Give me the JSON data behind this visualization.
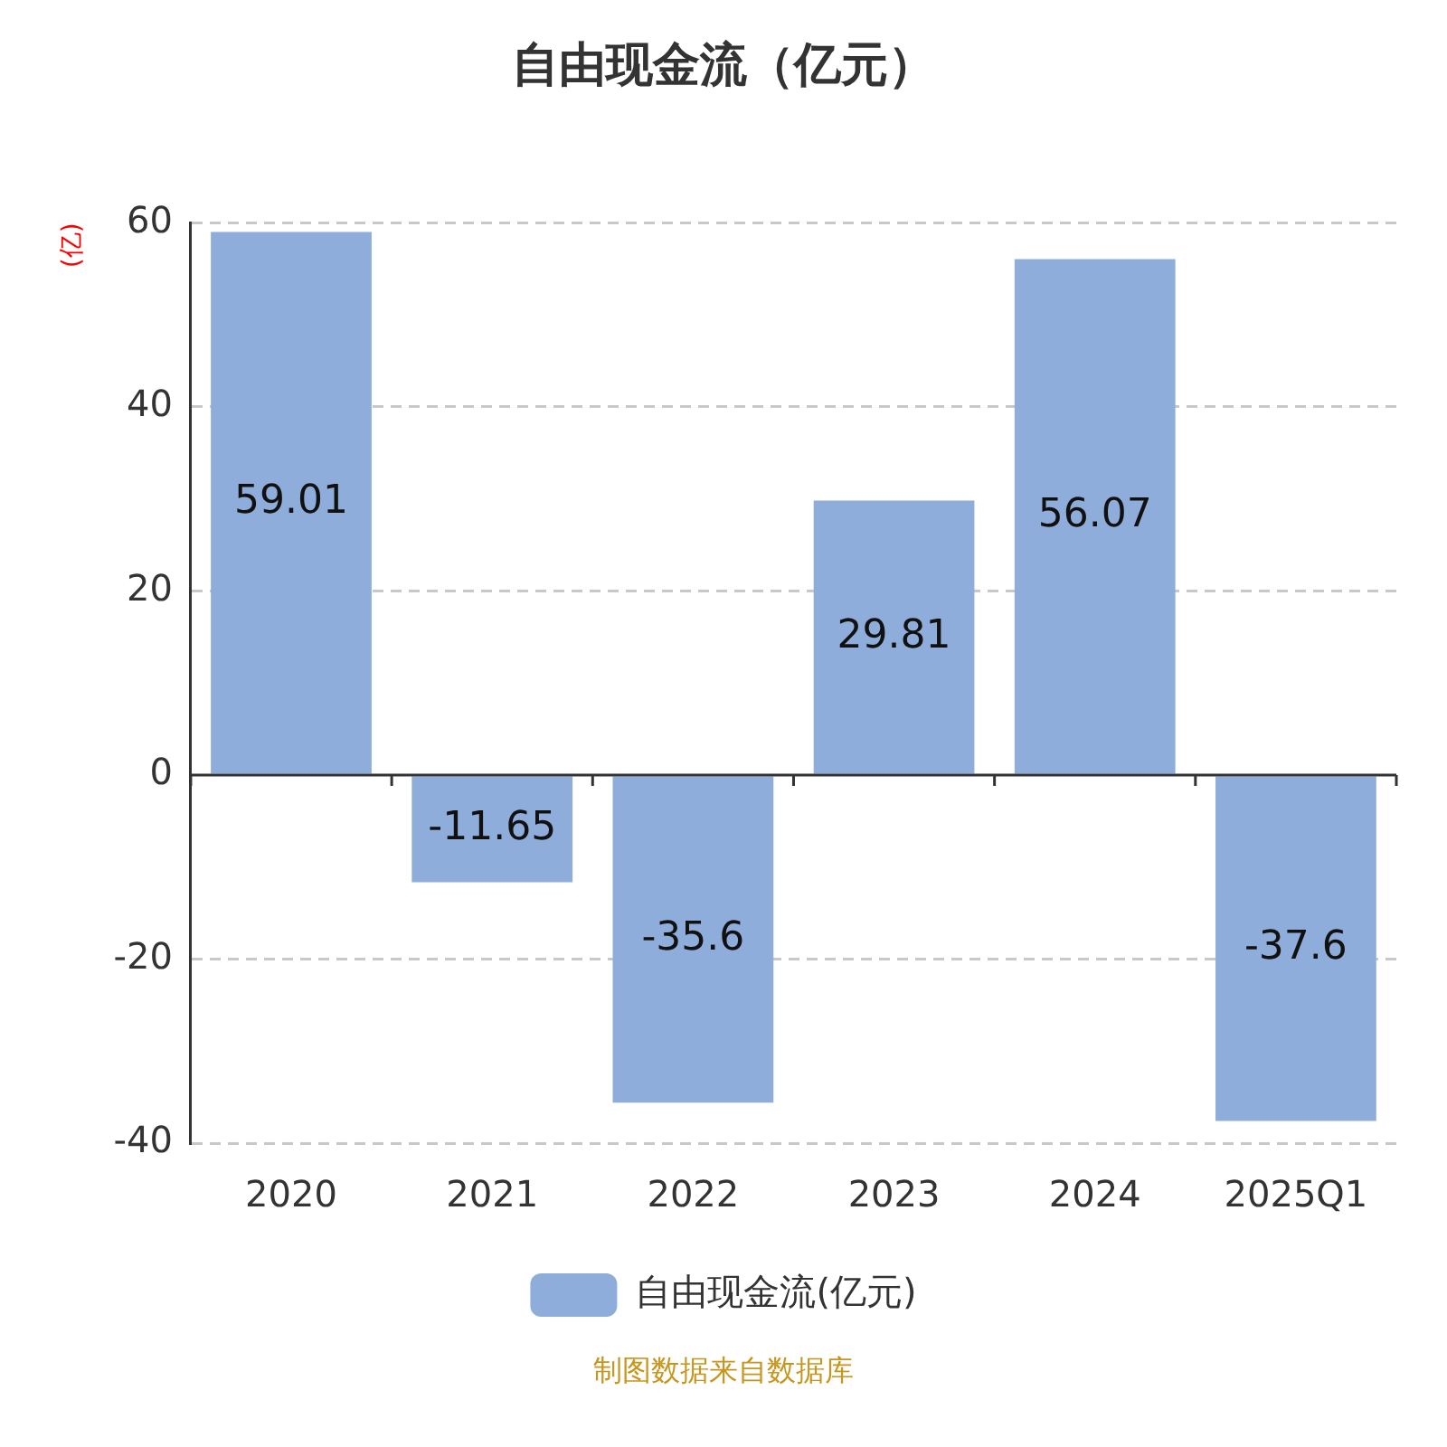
{
  "chart_data": {
    "type": "bar",
    "title": "自由现金流（亿元）",
    "ylabel": "(亿)",
    "categories": [
      "2020",
      "2021",
      "2022",
      "2023",
      "2024",
      "2025Q1"
    ],
    "series": [
      {
        "name": "自由现金流(亿元)",
        "color": "#8eaddb",
        "values": [
          59.01,
          -11.65,
          -35.6,
          29.81,
          56.07,
          -37.6
        ]
      }
    ],
    "ylim": [
      -40,
      60
    ],
    "yticks": [
      -40,
      -20,
      0,
      20,
      40,
      60
    ],
    "grid": "y",
    "legend": "bottom",
    "data_labels": true,
    "annotations": [
      "制图数据来自数据库"
    ]
  }
}
